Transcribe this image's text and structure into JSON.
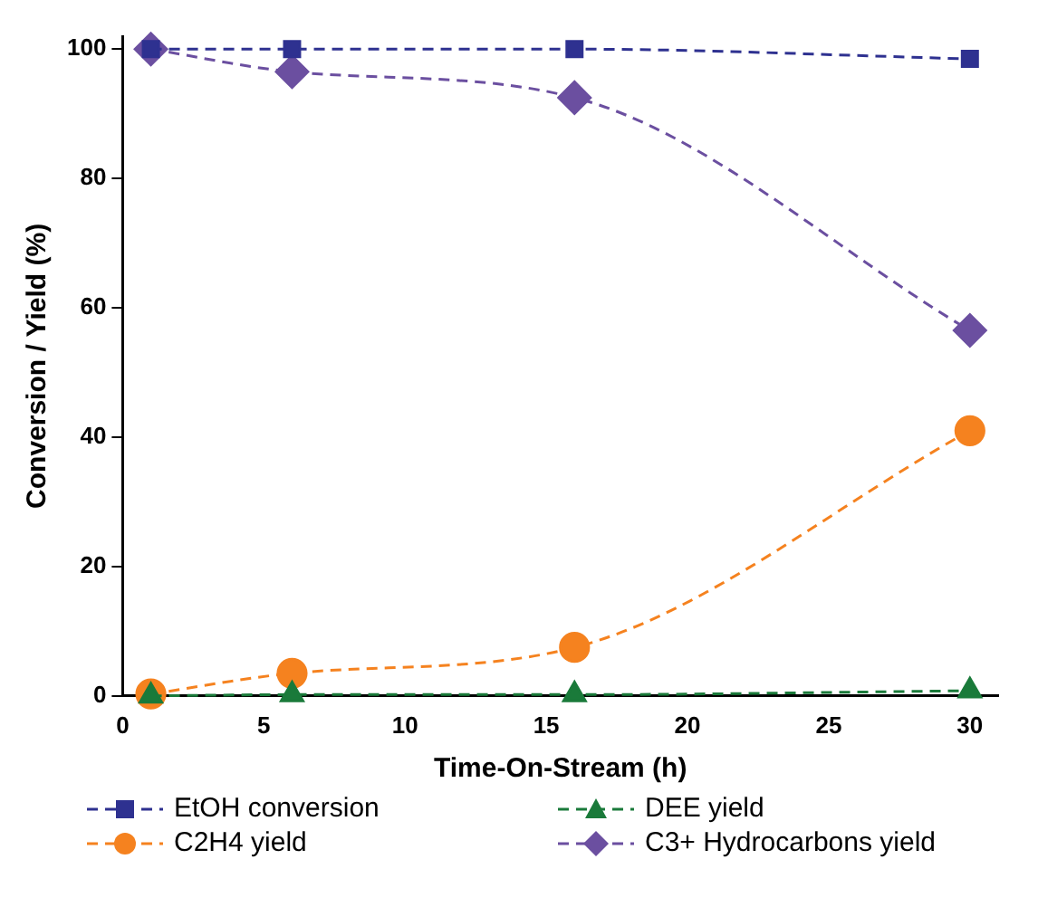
{
  "chart_data": {
    "type": "line",
    "xlabel": "Time-On-Stream (h)",
    "ylabel": "Conversion / Yield (%)",
    "x": [
      1,
      6,
      16,
      30
    ],
    "series": [
      {
        "name": "EtOH conversion",
        "color": "#2e3190",
        "marker": "square",
        "values": [
          100,
          100,
          100,
          98.5
        ]
      },
      {
        "name": "DEE yield",
        "color": "#1a7a3a",
        "marker": "triangle",
        "values": [
          0,
          0.2,
          0.2,
          0.8
        ]
      },
      {
        "name": "C2H4 yield",
        "color": "#f5821f",
        "marker": "circle",
        "values": [
          0.3,
          3.5,
          7.5,
          41
        ]
      },
      {
        "name": "C3+ Hydrocarbons yield",
        "color": "#6b4fa0",
        "marker": "diamond",
        "values": [
          100,
          96.5,
          92.5,
          56.5
        ]
      }
    ],
    "xlim": [
      0,
      31
    ],
    "xticks": [
      0,
      5,
      10,
      15,
      20,
      25,
      30
    ],
    "ylim": [
      0,
      102
    ],
    "yticks": [
      0,
      20,
      40,
      60,
      80,
      100
    ],
    "grid": false,
    "legend": "bottom",
    "line_style": "dashed"
  }
}
